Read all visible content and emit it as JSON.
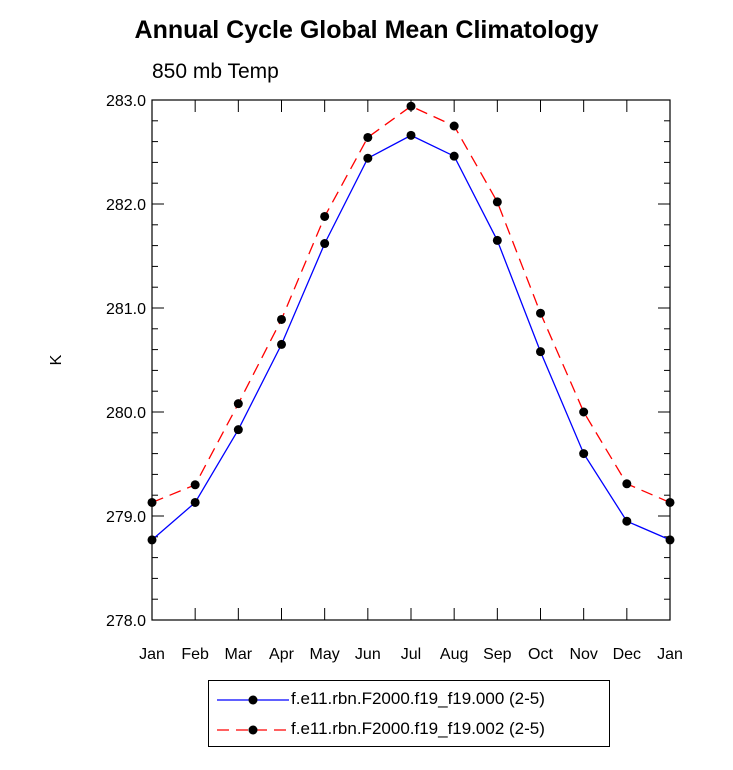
{
  "chart_data": {
    "type": "line",
    "title": "Annual Cycle Global Mean Climatology",
    "subtitle": "850 mb Temp",
    "xlabel": "",
    "ylabel": "K",
    "categories": [
      "Jan",
      "Feb",
      "Mar",
      "Apr",
      "May",
      "Jun",
      "Jul",
      "Aug",
      "Sep",
      "Oct",
      "Nov",
      "Dec",
      "Jan"
    ],
    "ylim": [
      278.0,
      283.0
    ],
    "yticks": [
      "278.0",
      "279.0",
      "280.0",
      "281.0",
      "282.0",
      "283.0"
    ],
    "grid": false,
    "legend_position": "bottom",
    "series": [
      {
        "name": "f.e11.rbn.F2000.f19_f19.000 (2-5)",
        "color": "#0000ff",
        "line_style": "solid",
        "marker": "filled-circle",
        "values": [
          278.77,
          279.13,
          279.83,
          280.65,
          281.62,
          282.44,
          282.66,
          282.46,
          281.65,
          280.58,
          279.6,
          278.95,
          278.77
        ]
      },
      {
        "name": "f.e11.rbn.F2000.f19_f19.002 (2-5)",
        "color": "#ff0000",
        "line_style": "dashed",
        "marker": "filled-circle",
        "values": [
          279.13,
          279.3,
          280.08,
          280.89,
          281.88,
          282.64,
          282.94,
          282.75,
          282.02,
          280.95,
          280.0,
          279.31,
          279.13
        ]
      }
    ]
  }
}
